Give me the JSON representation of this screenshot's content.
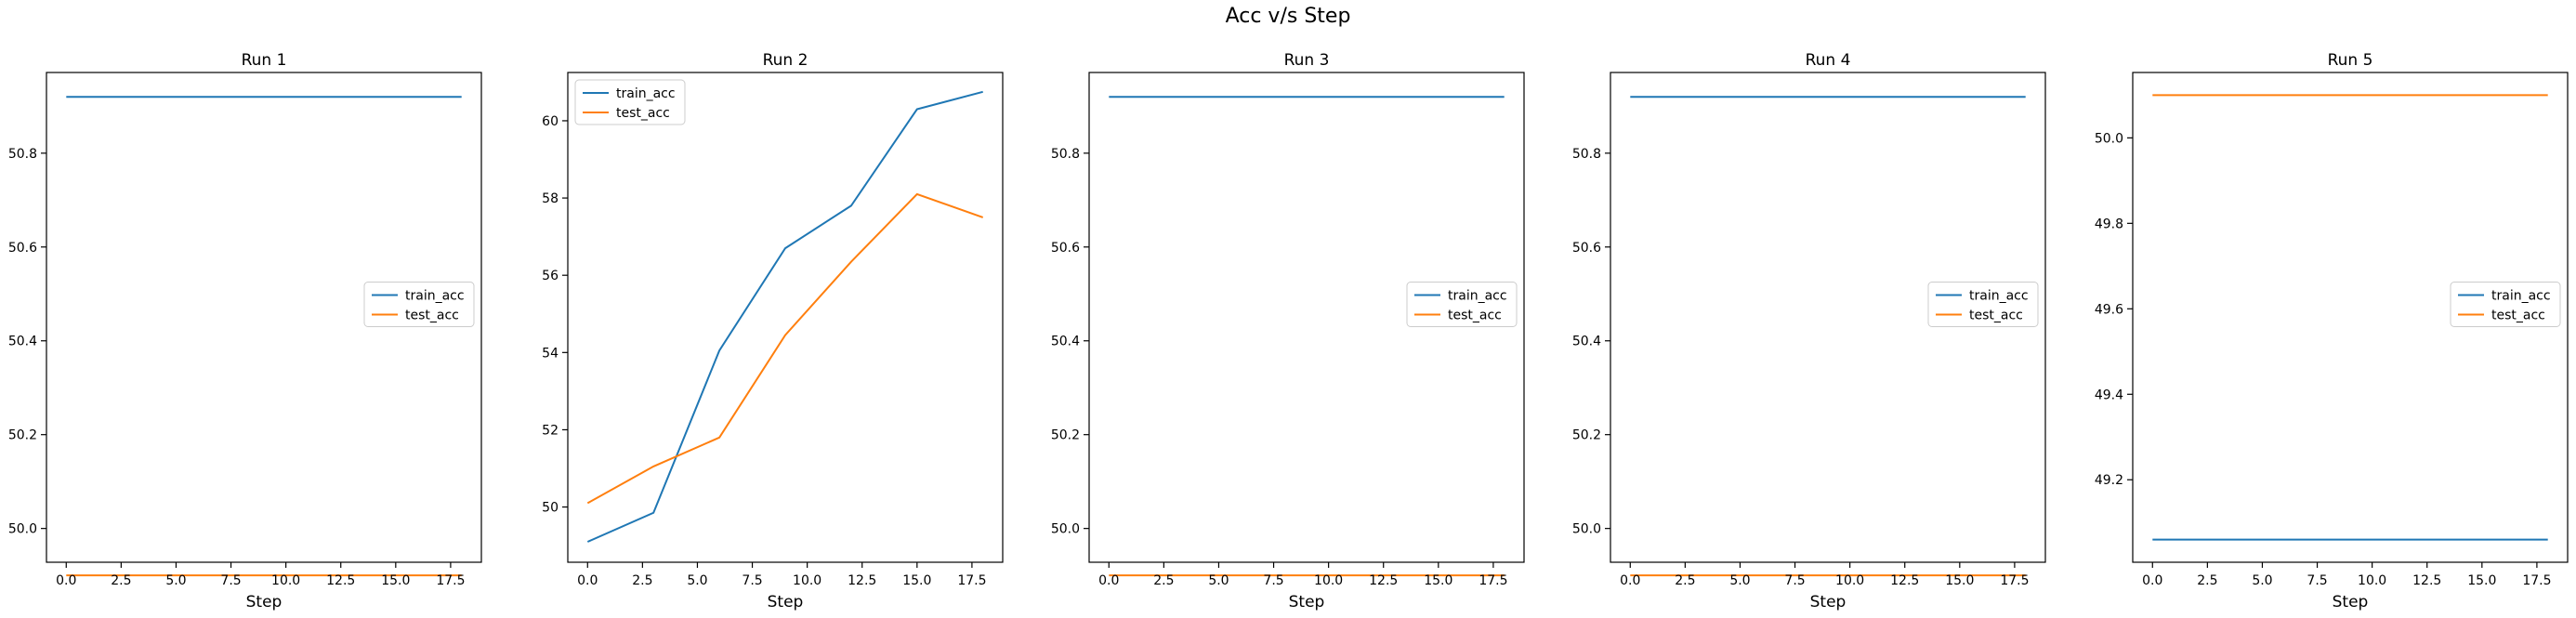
{
  "figure": {
    "suptitle": "Acc v/s Step"
  },
  "chart_data": [
    {
      "type": "line",
      "title": "Run 1",
      "xlabel": "Step",
      "ylabel": "",
      "xlim": [
        -0.9,
        18.9
      ],
      "ylim": [
        49.928,
        50.972
      ],
      "xticks": [
        0.0,
        2.5,
        5.0,
        7.5,
        10.0,
        12.5,
        15.0,
        17.5
      ],
      "xtick_labels": [
        "0.0",
        "2.5",
        "5.0",
        "7.5",
        "10.0",
        "12.5",
        "15.0",
        "17.5"
      ],
      "yticks": [
        50.0,
        50.2,
        50.4,
        50.6,
        50.8
      ],
      "ytick_labels": [
        "50.0",
        "50.2",
        "50.4",
        "50.6",
        "50.8"
      ],
      "grid": false,
      "legend": "center-right",
      "series": [
        {
          "name": "train_acc",
          "color": "#1f77b4",
          "x": [
            0,
            18
          ],
          "y": [
            50.92,
            50.92
          ]
        },
        {
          "name": "test_acc",
          "color": "#ff7f0e",
          "x": [
            0,
            18
          ],
          "y": [
            49.9,
            49.9
          ]
        }
      ]
    },
    {
      "type": "line",
      "title": "Run 2",
      "xlabel": "Step",
      "ylabel": "",
      "xlim": [
        -0.9,
        18.9
      ],
      "ylim": [
        48.57,
        61.25
      ],
      "xticks": [
        0.0,
        2.5,
        5.0,
        7.5,
        10.0,
        12.5,
        15.0,
        17.5
      ],
      "xtick_labels": [
        "0.0",
        "2.5",
        "5.0",
        "7.5",
        "10.0",
        "12.5",
        "15.0",
        "17.5"
      ],
      "yticks": [
        50,
        52,
        54,
        56,
        58,
        60
      ],
      "ytick_labels": [
        "50",
        "52",
        "54",
        "56",
        "58",
        "60"
      ],
      "grid": false,
      "legend": "upper-left",
      "series": [
        {
          "name": "train_acc",
          "color": "#1f77b4",
          "x": [
            0,
            3,
            6,
            9,
            12,
            15,
            18
          ],
          "y": [
            49.1,
            49.85,
            54.05,
            56.7,
            57.8,
            60.3,
            60.75
          ]
        },
        {
          "name": "test_acc",
          "color": "#ff7f0e",
          "x": [
            0,
            3,
            6,
            9,
            12,
            15,
            18
          ],
          "y": [
            50.1,
            51.05,
            51.8,
            54.45,
            56.35,
            58.1,
            57.5
          ]
        }
      ]
    },
    {
      "type": "line",
      "title": "Run 3",
      "xlabel": "Step",
      "ylabel": "",
      "xlim": [
        -0.9,
        18.9
      ],
      "ylim": [
        49.928,
        50.972
      ],
      "xticks": [
        0.0,
        2.5,
        5.0,
        7.5,
        10.0,
        12.5,
        15.0,
        17.5
      ],
      "xtick_labels": [
        "0.0",
        "2.5",
        "5.0",
        "7.5",
        "10.0",
        "12.5",
        "15.0",
        "17.5"
      ],
      "yticks": [
        50.0,
        50.2,
        50.4,
        50.6,
        50.8
      ],
      "ytick_labels": [
        "50.0",
        "50.2",
        "50.4",
        "50.6",
        "50.8"
      ],
      "grid": false,
      "legend": "center-right",
      "series": [
        {
          "name": "train_acc",
          "color": "#1f77b4",
          "x": [
            0,
            18
          ],
          "y": [
            50.92,
            50.92
          ]
        },
        {
          "name": "test_acc",
          "color": "#ff7f0e",
          "x": [
            0,
            18
          ],
          "y": [
            49.9,
            49.9
          ]
        }
      ]
    },
    {
      "type": "line",
      "title": "Run 4",
      "xlabel": "Step",
      "ylabel": "",
      "xlim": [
        -0.9,
        18.9
      ],
      "ylim": [
        49.928,
        50.972
      ],
      "xticks": [
        0.0,
        2.5,
        5.0,
        7.5,
        10.0,
        12.5,
        15.0,
        17.5
      ],
      "xtick_labels": [
        "0.0",
        "2.5",
        "5.0",
        "7.5",
        "10.0",
        "12.5",
        "15.0",
        "17.5"
      ],
      "yticks": [
        50.0,
        50.2,
        50.4,
        50.6,
        50.8
      ],
      "ytick_labels": [
        "50.0",
        "50.2",
        "50.4",
        "50.6",
        "50.8"
      ],
      "grid": false,
      "legend": "center-right",
      "series": [
        {
          "name": "train_acc",
          "color": "#1f77b4",
          "x": [
            0,
            18
          ],
          "y": [
            50.92,
            50.92
          ]
        },
        {
          "name": "test_acc",
          "color": "#ff7f0e",
          "x": [
            0,
            18
          ],
          "y": [
            49.9,
            49.9
          ]
        }
      ]
    },
    {
      "type": "line",
      "title": "Run 5",
      "xlabel": "Step",
      "ylabel": "",
      "xlim": [
        -0.9,
        18.9
      ],
      "ylim": [
        49.007,
        50.153
      ],
      "xticks": [
        0.0,
        2.5,
        5.0,
        7.5,
        10.0,
        12.5,
        15.0,
        17.5
      ],
      "xtick_labels": [
        "0.0",
        "2.5",
        "5.0",
        "7.5",
        "10.0",
        "12.5",
        "15.0",
        "17.5"
      ],
      "yticks": [
        49.2,
        49.4,
        49.6,
        49.8,
        50.0
      ],
      "ytick_labels": [
        "49.2",
        "49.4",
        "49.6",
        "49.8",
        "50.0"
      ],
      "grid": false,
      "legend": "center-right",
      "series": [
        {
          "name": "train_acc",
          "color": "#1f77b4",
          "x": [
            0,
            18
          ],
          "y": [
            49.06,
            49.06
          ]
        },
        {
          "name": "test_acc",
          "color": "#ff7f0e",
          "x": [
            0,
            18
          ],
          "y": [
            50.1,
            50.1
          ]
        }
      ]
    }
  ]
}
